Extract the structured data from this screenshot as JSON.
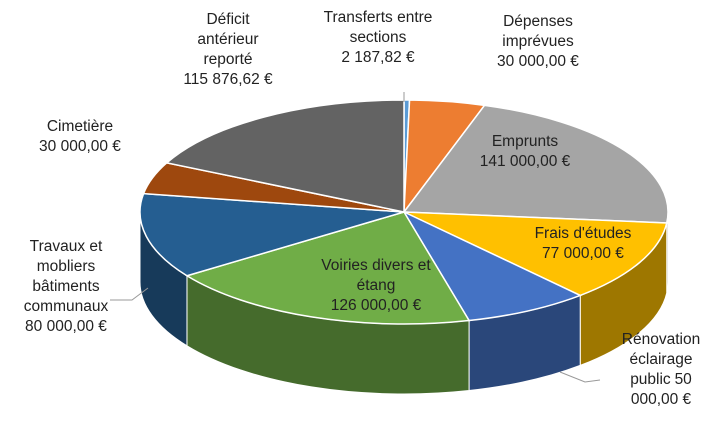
{
  "chart_data": {
    "type": "pie",
    "categories": [
      "Transferts entre sections",
      "Dépenses imprévues",
      "Emprunts",
      "Frais d'études",
      "Rénovation éclairage public",
      "Voiries divers et étang",
      "Travaux et mobliers bâtiments communaux",
      "Cimetière",
      "Déficit antérieur reporté"
    ],
    "values": [
      2187.82,
      30000,
      141000,
      77000,
      50000,
      126000,
      80000,
      30000,
      115876.62
    ],
    "value_labels": [
      "2 187,82 €",
      "30 000,00 €",
      "141 000,00 €",
      "77 000,00 €",
      "50 000,00 €",
      "126 000,00 €",
      "80 000,00 €",
      "30 000,00 €",
      "115 876,62 €"
    ],
    "colors": [
      "#5b9bd5",
      "#ed7d31",
      "#a5a5a5",
      "#ffc000",
      "#4472c4",
      "#70ad47",
      "#255e91",
      "#9e480e",
      "#636363"
    ]
  }
}
